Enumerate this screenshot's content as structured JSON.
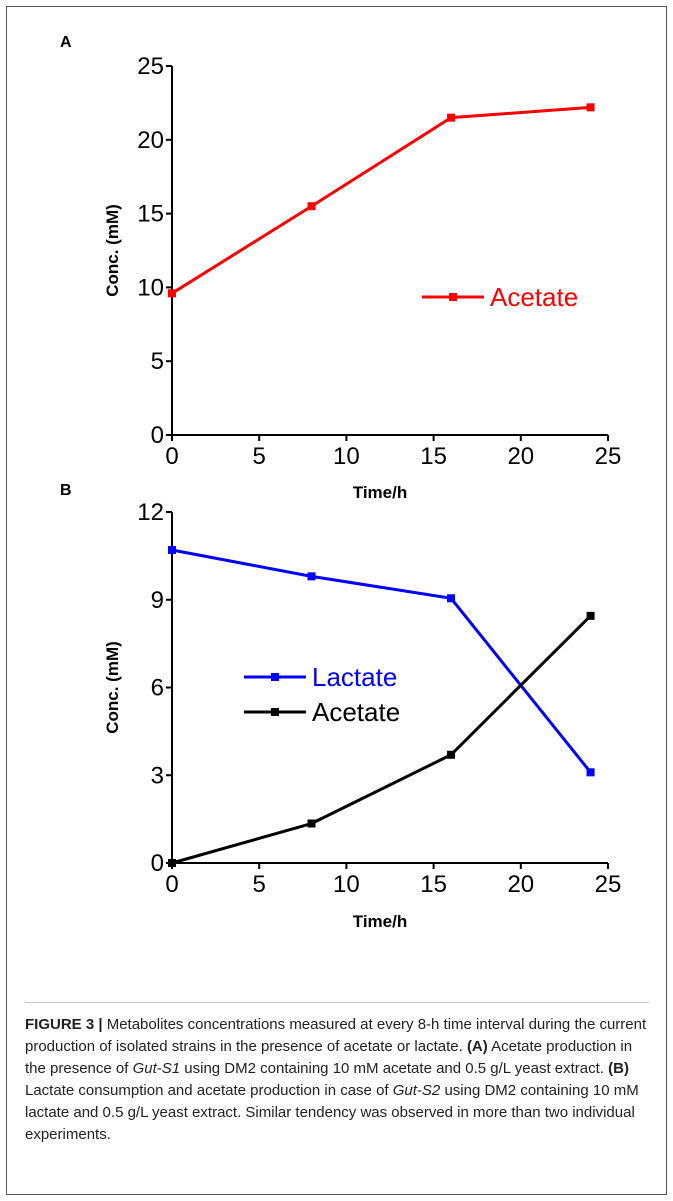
{
  "chart_data": [
    {
      "panel": "A",
      "type": "line",
      "xlabel": "Time/h",
      "ylabel": "Conc. (mM)",
      "xlim": [
        0,
        25
      ],
      "ylim": [
        0,
        25
      ],
      "xticks": [
        0,
        5,
        10,
        15,
        20,
        25
      ],
      "yticks": [
        0,
        5,
        10,
        15,
        20,
        25
      ],
      "grid": false,
      "legend_position": "center-right",
      "series": [
        {
          "name": "Acetate",
          "color": "#ff0000",
          "x": [
            0,
            8,
            16,
            24
          ],
          "y": [
            9.6,
            15.5,
            21.5,
            22.2
          ]
        }
      ]
    },
    {
      "panel": "B",
      "type": "line",
      "xlabel": "Time/h",
      "ylabel": "Conc. (mM)",
      "xlim": [
        0,
        25
      ],
      "ylim": [
        0,
        12
      ],
      "xticks": [
        0,
        5,
        10,
        15,
        20,
        25
      ],
      "yticks": [
        0,
        3,
        6,
        9,
        12
      ],
      "grid": false,
      "legend_position": "center-left",
      "series": [
        {
          "name": "Lactate",
          "color": "#0000ff",
          "x": [
            0,
            8,
            16,
            24
          ],
          "y": [
            10.7,
            9.8,
            9.05,
            3.1
          ]
        },
        {
          "name": "Acetate",
          "color": "#000000",
          "x": [
            0,
            8,
            16,
            24
          ],
          "y": [
            0,
            1.35,
            3.7,
            8.45
          ]
        }
      ]
    }
  ],
  "caption": {
    "figure_label": "FIGURE 3 |",
    "text_1": " Metabolites concentrations measured at every 8-h time interval during the current production of isolated strains in the presence of acetate or lactate. ",
    "label_a": "(A)",
    "text_2": " Acetate production in the presence of ",
    "strain_1": "Gut-S1",
    "text_3": " using DM2 containing 10 mM acetate and 0.5 g/L yeast extract. ",
    "label_b": "(B)",
    "text_4": " Lactate consumption and acetate production in case of ",
    "strain_2": "Gut-S2",
    "text_5": " using DM2 containing 10 mM lactate and 0.5 g/L yeast extract. Similar tendency was observed in more than two individual experiments."
  }
}
